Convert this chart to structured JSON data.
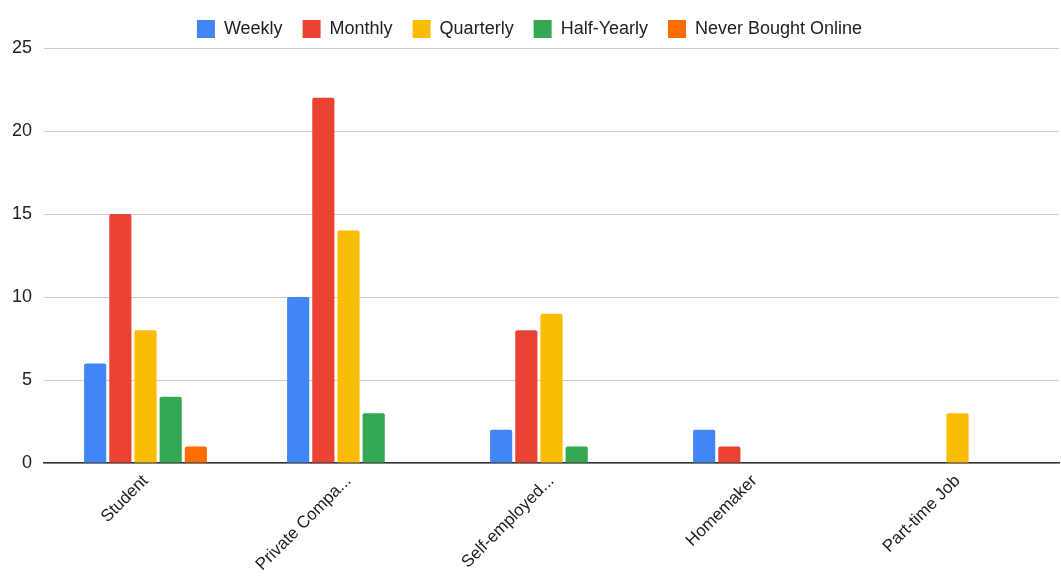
{
  "chart_data": {
    "type": "bar",
    "categories": [
      "Student",
      "Private Compa...",
      "Self-employed...",
      "Homemaker",
      "Part-time Job"
    ],
    "series": [
      {
        "name": "Weekly",
        "color": "#4285f4",
        "values": [
          6,
          10,
          2,
          2,
          0
        ]
      },
      {
        "name": "Monthly",
        "color": "#ea4335",
        "values": [
          15,
          22,
          8,
          1,
          0
        ]
      },
      {
        "name": "Quarterly",
        "color": "#fbbc04",
        "values": [
          8,
          14,
          9,
          0,
          3
        ]
      },
      {
        "name": "Half-Yearly",
        "color": "#34a853",
        "values": [
          4,
          3,
          1,
          0,
          0
        ]
      },
      {
        "name": "Never Bought Online",
        "color": "#ff6d01",
        "values": [
          1,
          0,
          0,
          0,
          0
        ]
      }
    ],
    "ylim": [
      0,
      25
    ],
    "yticks": [
      0,
      5,
      10,
      15,
      20,
      25
    ],
    "grid": "y",
    "legend": "top"
  }
}
